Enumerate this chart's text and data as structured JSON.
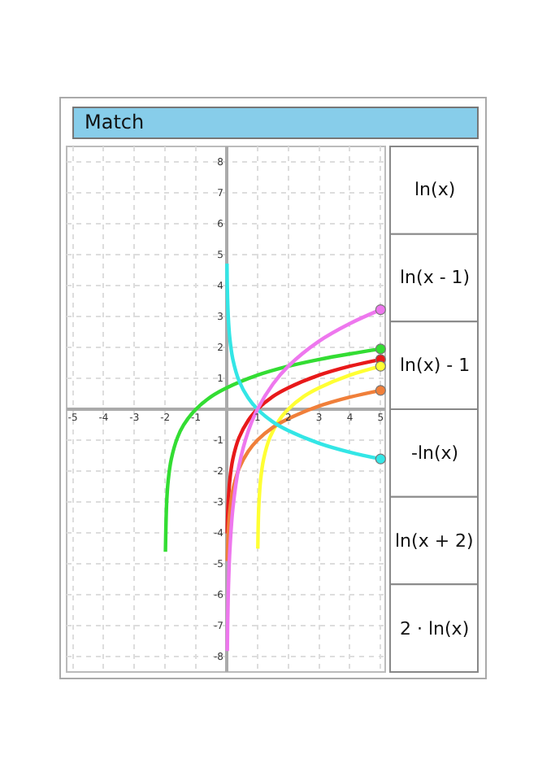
{
  "chart_data": {
    "type": "line",
    "title": "Match",
    "xlim": [
      -5.2,
      5.15
    ],
    "ylim": [
      -8.5,
      8.5
    ],
    "xticks": [
      -5,
      -4,
      -3,
      -2,
      -1,
      1,
      2,
      3,
      4,
      5
    ],
    "yticks": [
      -8,
      -7,
      -6,
      -5,
      -4,
      -3,
      -2,
      -1,
      1,
      2,
      3,
      4,
      5,
      6,
      7,
      8
    ],
    "grid": true,
    "line_style": "solid",
    "series": [
      {
        "color": "#33dd33",
        "x": [
          -1.99,
          -1.95,
          -1.9,
          -1.8,
          -1.6,
          -1.4,
          -1,
          -0.5,
          0,
          1,
          2,
          3,
          4,
          5
        ],
        "values": [
          -4.61,
          -3.0,
          -2.3,
          -1.61,
          -0.92,
          -0.51,
          0,
          0.41,
          0.69,
          1.1,
          1.39,
          1.61,
          1.79,
          1.95
        ]
      },
      {
        "color": "#e8191a",
        "x": [
          0.018,
          0.03,
          0.05,
          0.1,
          0.2,
          0.4,
          0.7,
          1,
          1.5,
          2,
          3,
          4,
          5
        ],
        "values": [
          -4.02,
          -3.51,
          -3.0,
          -2.3,
          -1.61,
          -0.92,
          -0.36,
          0,
          0.41,
          0.69,
          1.1,
          1.39,
          1.61
        ]
      },
      {
        "color": "#ffff33",
        "x": [
          1.011,
          1.03,
          1.05,
          1.1,
          1.2,
          1.4,
          1.7,
          2,
          2.5,
          3,
          4,
          5
        ],
        "values": [
          -4.51,
          -3.51,
          -3.0,
          -2.3,
          -1.61,
          -0.92,
          -0.36,
          0,
          0.41,
          0.69,
          1.1,
          1.39
        ]
      },
      {
        "color": "#f07f3a",
        "x": [
          0.02,
          0.05,
          0.1,
          0.2,
          0.4,
          0.7,
          1,
          1.5,
          2,
          3,
          4,
          5
        ],
        "values": [
          -4.91,
          -4.0,
          -3.3,
          -2.61,
          -1.92,
          -1.36,
          -1,
          -0.59,
          -0.31,
          0.1,
          0.39,
          0.61
        ]
      },
      {
        "color": "#33e6e6",
        "x": [
          0.009,
          0.02,
          0.05,
          0.1,
          0.2,
          0.4,
          0.7,
          1,
          1.5,
          2,
          3,
          4,
          5
        ],
        "values": [
          4.71,
          3.91,
          3.0,
          2.3,
          1.61,
          0.92,
          0.36,
          0,
          -0.41,
          -0.69,
          -1.1,
          -1.39,
          -1.61
        ]
      },
      {
        "color": "#ee77ee",
        "x": [
          0.02,
          0.03,
          0.05,
          0.1,
          0.2,
          0.4,
          0.7,
          1,
          1.5,
          2,
          3,
          4,
          5
        ],
        "values": [
          -7.82,
          -7.01,
          -5.99,
          -4.61,
          -3.22,
          -1.83,
          -0.71,
          0,
          0.81,
          1.39,
          2.2,
          2.77,
          3.22
        ]
      },
      {
        "type": "scatter",
        "marker": "circle",
        "color": "#33dd33",
        "x": [
          5
        ],
        "values": [
          1.95
        ]
      },
      {
        "type": "scatter",
        "marker": "circle",
        "color": "#e8191a",
        "x": [
          5
        ],
        "values": [
          1.61
        ]
      },
      {
        "type": "scatter",
        "marker": "circle",
        "color": "#ffff33",
        "x": [
          5
        ],
        "values": [
          1.39
        ]
      },
      {
        "type": "scatter",
        "marker": "circle",
        "color": "#f07f3a",
        "x": [
          5
        ],
        "values": [
          0.61
        ]
      },
      {
        "type": "scatter",
        "marker": "circle",
        "color": "#33e6e6",
        "x": [
          5
        ],
        "values": [
          -1.61
        ]
      },
      {
        "type": "scatter",
        "marker": "circle",
        "color": "#ee77ee",
        "x": [
          5
        ],
        "values": [
          3.22
        ]
      }
    ],
    "annotations": [
      "ln(x)",
      "ln(x - 1)",
      "ln(x) - 1",
      "-ln(x)",
      "ln(x + 2)",
      "2 · ln(x)"
    ]
  }
}
